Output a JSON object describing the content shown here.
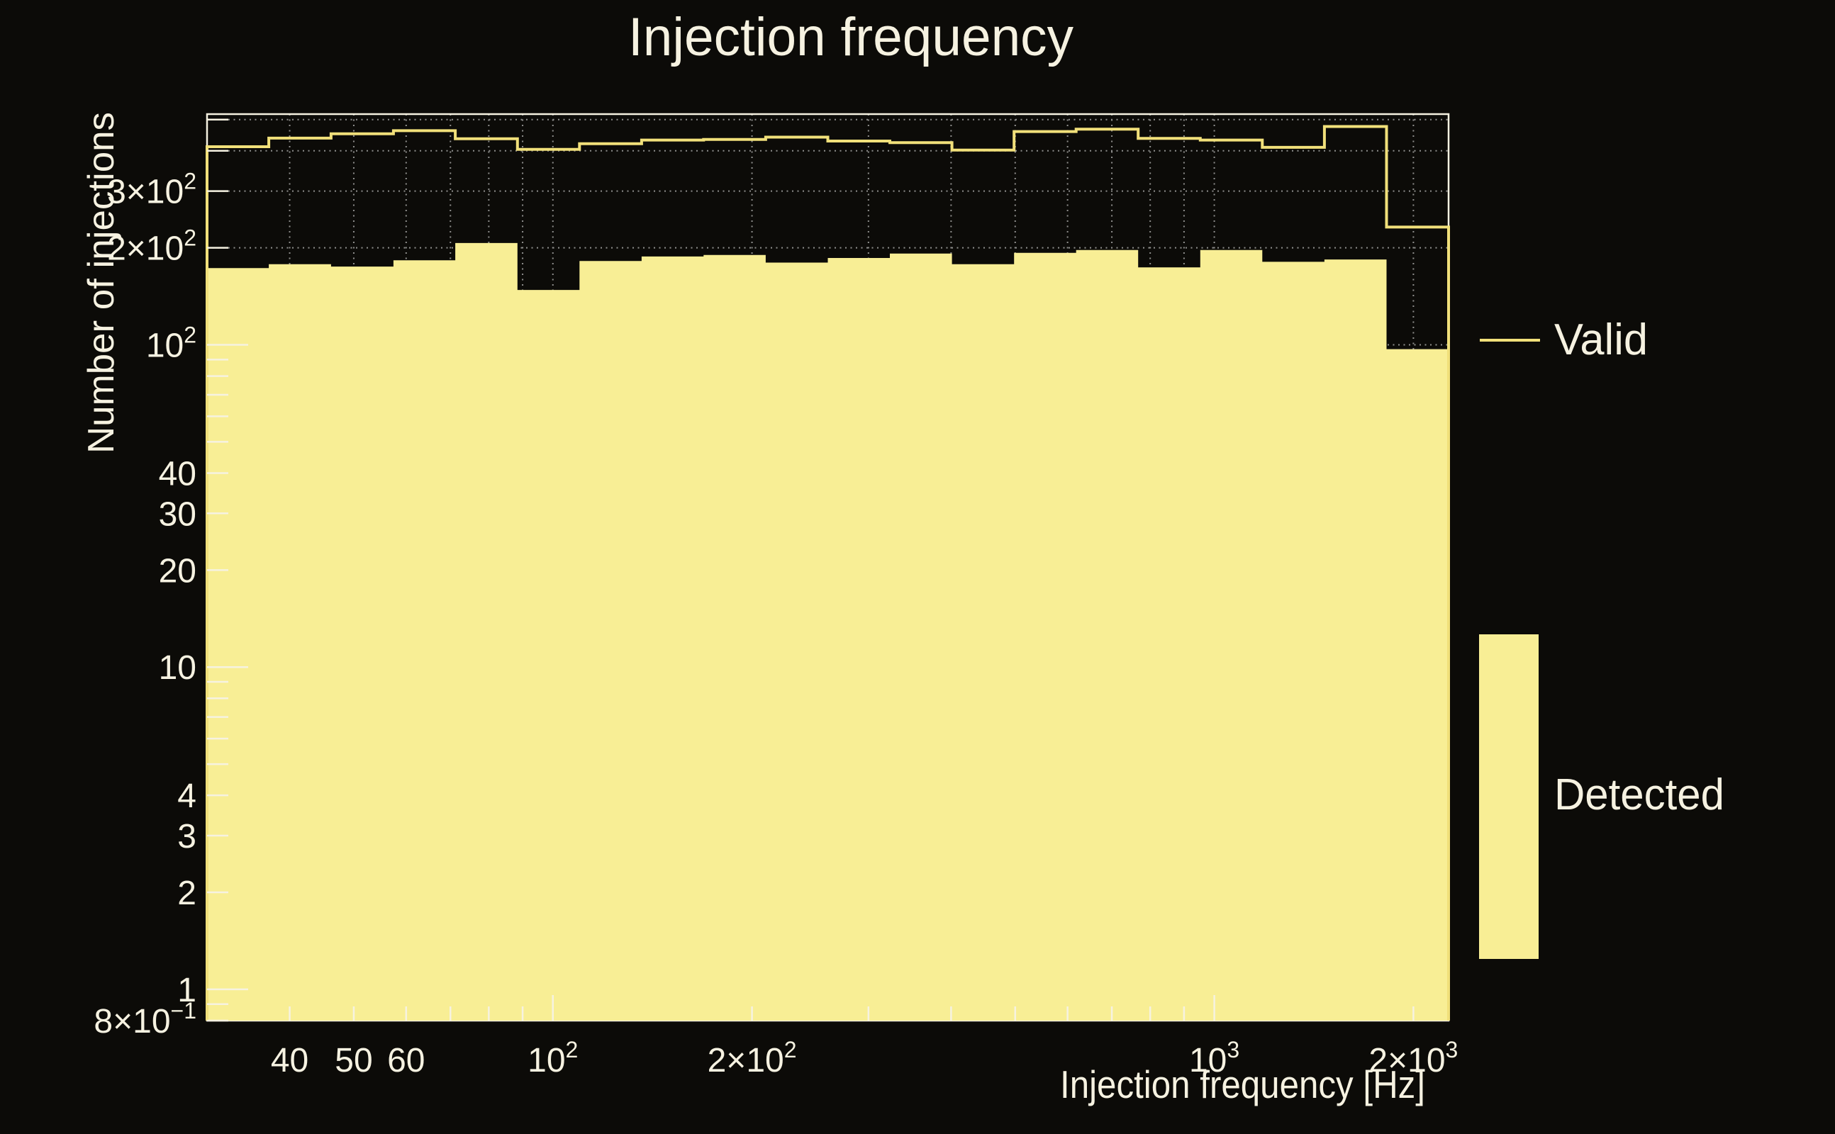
{
  "colors": {
    "background": "#0c0b08",
    "foreground": "#f6f2e1",
    "grid": "#8f8f8d",
    "valid_line": "#f1e07a",
    "detected_fill": "#f8ee95"
  },
  "chart_data": {
    "type": "histogram-step",
    "title": "Injection frequency",
    "xlabel": "Injection frequency [Hz]",
    "ylabel": "Number of injections",
    "xscale": "log",
    "yscale": "log",
    "xlim": [
      30,
      2260.5
    ],
    "ylim": [
      0.8,
      520
    ],
    "grid": "dotted",
    "legend_position": "right-outside",
    "bin_edges": [
      30.0,
      37.2,
      46.2,
      57.4,
      71.2,
      88.4,
      109.7,
      136.2,
      169.0,
      209.8,
      260.4,
      323.2,
      401.2,
      498.0,
      618.1,
      767.2,
      952.3,
      1182.0,
      1467.2,
      1821.2,
      2260.5
    ],
    "series": [
      {
        "name": "Valid",
        "style": "line",
        "color": "#f1e07a",
        "values": [
          412,
          438,
          452,
          462,
          436,
          404,
          421,
          432,
          434,
          441,
          429,
          424,
          402,
          459,
          467,
          437,
          432,
          410,
          476,
          232
        ]
      },
      {
        "name": "Detected",
        "style": "fill",
        "color": "#f8ee95",
        "values": [
          173,
          178,
          175,
          183,
          207,
          148,
          182,
          188,
          190,
          180,
          186,
          192,
          178,
          193,
          197,
          174,
          197,
          181,
          184,
          97
        ]
      }
    ],
    "x_ticks": [
      {
        "v": 40,
        "base": "40",
        "sup": ""
      },
      {
        "v": 50,
        "base": "50",
        "sup": ""
      },
      {
        "v": 60,
        "base": "60",
        "sup": ""
      },
      {
        "v": 100,
        "base": "10",
        "sup": "2"
      },
      {
        "v": 200,
        "base": "2×10",
        "sup": "2"
      },
      {
        "v": 1000,
        "base": "10",
        "sup": "3"
      },
      {
        "v": 2000,
        "base": "2×10",
        "sup": "3"
      }
    ],
    "y_ticks": [
      {
        "v": 0.8,
        "base": "8×10",
        "sup": "−1"
      },
      {
        "v": 1,
        "base": "1",
        "sup": ""
      },
      {
        "v": 2,
        "base": "2",
        "sup": ""
      },
      {
        "v": 3,
        "base": "3",
        "sup": ""
      },
      {
        "v": 4,
        "base": "4",
        "sup": ""
      },
      {
        "v": 10,
        "base": "10",
        "sup": ""
      },
      {
        "v": 20,
        "base": "20",
        "sup": ""
      },
      {
        "v": 30,
        "base": "30",
        "sup": ""
      },
      {
        "v": 40,
        "base": "40",
        "sup": ""
      },
      {
        "v": 100,
        "base": "10",
        "sup": "2"
      },
      {
        "v": 200,
        "base": "2×10",
        "sup": "2"
      },
      {
        "v": 300,
        "base": "3×10",
        "sup": "2"
      }
    ],
    "x_grid": [
      40,
      50,
      60,
      70,
      80,
      90,
      100,
      200,
      300,
      400,
      500,
      600,
      700,
      800,
      900,
      1000,
      2000
    ],
    "y_grid": [
      0.9,
      1,
      2,
      3,
      4,
      5,
      6,
      7,
      8,
      9,
      10,
      20,
      30,
      40,
      50,
      60,
      70,
      80,
      90,
      100,
      200,
      300,
      400,
      500
    ],
    "x_tick_marks": [
      40,
      50,
      60,
      70,
      80,
      90,
      100,
      200,
      300,
      400,
      500,
      600,
      700,
      800,
      900,
      1000,
      2000
    ],
    "x_major": [
      100,
      1000
    ],
    "y_tick_marks": [
      0.8,
      0.9,
      1,
      2,
      3,
      4,
      5,
      6,
      7,
      8,
      9,
      10,
      20,
      30,
      40,
      50,
      60,
      70,
      80,
      90,
      100,
      200,
      300,
      400,
      500
    ],
    "y_major": [
      1,
      10,
      100
    ]
  },
  "legend": {
    "entries": [
      {
        "label": "Valid",
        "swatch": "line"
      },
      {
        "label": "Detected",
        "swatch": "filled-rect"
      }
    ]
  }
}
